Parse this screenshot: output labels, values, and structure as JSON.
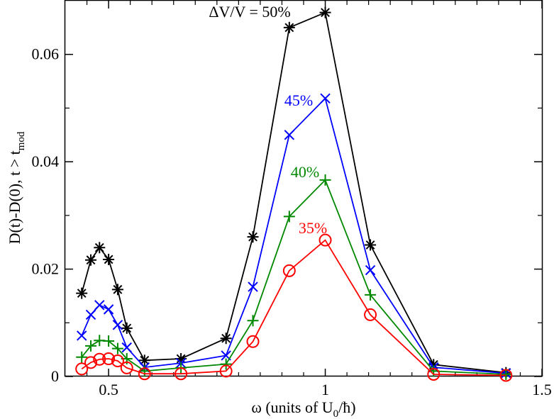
{
  "chart_data": {
    "type": "line",
    "title": "",
    "xlabel": "ω (units of U",
    "xlabel_sub": "0",
    "xlabel_tail": "/ħ)",
    "ylabel": "D(t)-D(0),   t > t",
    "ylabel_sub": "mod",
    "xlim": [
      0.4,
      1.5
    ],
    "ylim": [
      0,
      0.07
    ],
    "xticks": [
      0.5,
      1,
      1.5
    ],
    "xtick_labels": [
      "0.5",
      "1",
      "1.5"
    ],
    "yticks": [
      0,
      0.02,
      0.04,
      0.06
    ],
    "ytick_labels": [
      "0",
      "0.02",
      "0.04",
      "0.06"
    ],
    "x": [
      0.438,
      0.459,
      0.479,
      0.5,
      0.521,
      0.542,
      0.583,
      0.667,
      0.771,
      0.833,
      0.917,
      1.0,
      1.104,
      1.25,
      1.417
    ],
    "series": [
      {
        "name": "50%",
        "label": "ΔV/V = 50%",
        "color": "#000000",
        "marker": "asterisk",
        "values": [
          0.0155,
          0.0217,
          0.024,
          0.0218,
          0.0162,
          0.009,
          0.003,
          0.0033,
          0.0071,
          0.026,
          0.065,
          0.0678,
          0.0245,
          0.0022,
          0.0007
        ]
      },
      {
        "name": "45%",
        "label": "45%",
        "color": "#0000ff",
        "marker": "x",
        "values": [
          0.0076,
          0.0115,
          0.0133,
          0.0125,
          0.0096,
          0.0054,
          0.0017,
          0.0025,
          0.0039,
          0.0167,
          0.045,
          0.0518,
          0.0198,
          0.0017,
          0.0006
        ]
      },
      {
        "name": "40%",
        "label": "40%",
        "color": "#008800",
        "marker": "plus",
        "values": [
          0.0036,
          0.0057,
          0.0067,
          0.0066,
          0.0052,
          0.0033,
          0.001,
          0.0016,
          0.0023,
          0.0104,
          0.0298,
          0.0366,
          0.0152,
          0.001,
          0.0004
        ]
      },
      {
        "name": "35%",
        "label": "35%",
        "color": "#ff0000",
        "marker": "circle",
        "values": [
          0.0014,
          0.0026,
          0.0032,
          0.0033,
          0.0029,
          0.0016,
          0.0005,
          0.0005,
          0.001,
          0.0065,
          0.0197,
          0.0254,
          0.0115,
          0.0004,
          0.0002
        ]
      }
    ]
  }
}
